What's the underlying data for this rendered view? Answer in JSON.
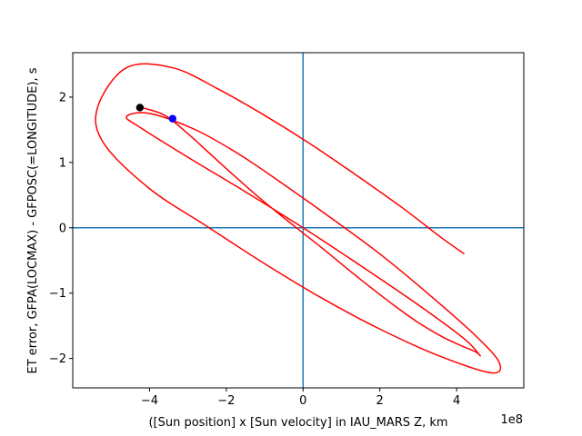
{
  "chart_data": {
    "type": "line",
    "title": "",
    "xlabel": "([Sun position] x [Sun velocity] in IAU_MARS Z, km",
    "ylabel": "ET error, GFPA(LOCMAX) - GFPOSC(=LONGITUDE), s",
    "x_offset_label": "1e8",
    "x_scale": 100000000,
    "xlim": [
      -6.0,
      5.75
    ],
    "ylim": [
      -2.45,
      2.68
    ],
    "x_ticks": [
      -4,
      -2,
      0,
      2,
      4
    ],
    "x_tick_labels": [
      "−4",
      "−2",
      "0",
      "2",
      "4"
    ],
    "y_ticks": [
      -2,
      -1,
      0,
      1,
      2
    ],
    "y_tick_labels": [
      "−2",
      "−1",
      "0",
      "1",
      "2"
    ],
    "grid": false,
    "reference_lines": {
      "x": 0,
      "y": 0,
      "color": "#1f77b4"
    },
    "series": [
      {
        "color": "#ff0000",
        "x": [
          -4.2,
          -3.6,
          -3.0,
          -2.4,
          -1.8,
          -1.2,
          -0.6,
          0.0,
          0.6,
          1.2,
          1.8,
          2.4,
          3.0,
          3.6,
          4.1,
          4.5,
          4.6,
          4.2,
          3.0,
          1.5,
          0.0,
          -1.5,
          -3.0,
          -4.2,
          -4.6,
          -4.0,
          -2.8,
          -1.6,
          -0.4,
          0.8,
          2.0,
          3.2,
          4.4,
          5.1,
          4.9,
          3.5,
          2.0,
          0.5,
          -1.0,
          -2.5,
          -4.0,
          -5.2,
          -5.35,
          -4.6,
          -3.4,
          -2.2,
          -1.0,
          0.2,
          1.4,
          2.6,
          3.6,
          4.2
        ],
        "y": [
          1.84,
          1.72,
          1.44,
          1.12,
          0.8,
          0.49,
          0.2,
          -0.08,
          -0.36,
          -0.65,
          -0.93,
          -1.2,
          -1.45,
          -1.66,
          -1.8,
          -1.9,
          -1.95,
          -1.7,
          -1.18,
          -0.58,
          0.0,
          0.55,
          1.08,
          1.52,
          1.7,
          1.75,
          1.5,
          1.1,
          0.62,
          0.12,
          -0.4,
          -0.98,
          -1.6,
          -2.05,
          -2.22,
          -1.95,
          -1.55,
          -1.08,
          -0.55,
          0.02,
          0.6,
          1.3,
          1.85,
          2.45,
          2.45,
          2.12,
          1.72,
          1.28,
          0.8,
          0.3,
          -0.15,
          -0.4
        ]
      }
    ],
    "markers": [
      {
        "x": -4.25,
        "y": 1.84,
        "color": "#000000"
      },
      {
        "x": -3.4,
        "y": 1.67,
        "color": "#0000ff"
      }
    ]
  }
}
